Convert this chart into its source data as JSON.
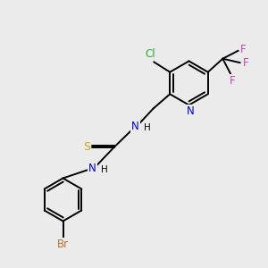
{
  "background_color": "#ebebeb",
  "bond_color": "#000000",
  "figsize": [
    3.0,
    3.0
  ],
  "dpi": 100,
  "colors": {
    "Br": "#b87333",
    "Cl": "#33aa33",
    "N": "#0000cc",
    "S": "#ccaa00",
    "F": "#cc44aa",
    "C": "#000000"
  }
}
